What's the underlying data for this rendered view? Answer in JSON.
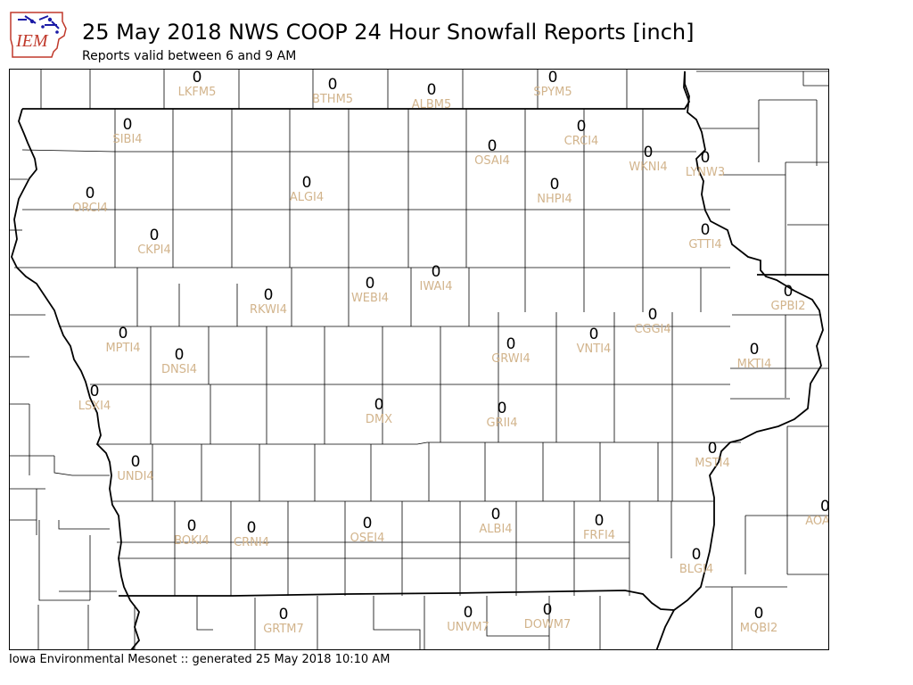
{
  "header": {
    "logo_text": "IEM",
    "title": "25 May 2018 NWS COOP 24 Hour Snowfall Reports [inch]",
    "subtitle": "Reports valid between 6 and 9 AM"
  },
  "footer": {
    "text": "Iowa Environmental Mesonet :: generated 25 May 2018 10:10 AM"
  },
  "colors": {
    "station_id": "#d2b48c",
    "value": "#000000",
    "state_border": "#000000",
    "county_lines": "#000000",
    "logo_blue": "#1a1aa6",
    "logo_red": "#c0392b"
  },
  "stations": [
    {
      "id": "LKFM5",
      "value": "0"
    },
    {
      "id": "BTHM5",
      "value": "0"
    },
    {
      "id": "ALBM5",
      "value": "0"
    },
    {
      "id": "SPYM5",
      "value": "0"
    },
    {
      "id": "SIBI4",
      "value": "0"
    },
    {
      "id": "CRCI4",
      "value": "0"
    },
    {
      "id": "OSAI4",
      "value": "0"
    },
    {
      "id": "WKNI4",
      "value": "0"
    },
    {
      "id": "LYNW3",
      "value": "0"
    },
    {
      "id": "ORCI4",
      "value": "0"
    },
    {
      "id": "ALGI4",
      "value": "0"
    },
    {
      "id": "NHPI4",
      "value": "0"
    },
    {
      "id": "CKPI4",
      "value": "0"
    },
    {
      "id": "GTTI4",
      "value": "0"
    },
    {
      "id": "RKWI4",
      "value": "0"
    },
    {
      "id": "WEBI4",
      "value": "0"
    },
    {
      "id": "IWAI4",
      "value": "0"
    },
    {
      "id": "GPBI2",
      "value": "0"
    },
    {
      "id": "MPTI4",
      "value": "0"
    },
    {
      "id": "CGGI4",
      "value": "0"
    },
    {
      "id": "VNTI4",
      "value": "0"
    },
    {
      "id": "GRWI4",
      "value": "0"
    },
    {
      "id": "DNSI4",
      "value": "0"
    },
    {
      "id": "MKTI4",
      "value": "0"
    },
    {
      "id": "LSXI4",
      "value": "0"
    },
    {
      "id": "DMX",
      "value": "0"
    },
    {
      "id": "GRII4",
      "value": "0"
    },
    {
      "id": "MSTI4",
      "value": "0"
    },
    {
      "id": "UNDI4",
      "value": "0"
    },
    {
      "id": "AOA",
      "value": "0"
    },
    {
      "id": "BOKI4",
      "value": "0"
    },
    {
      "id": "CRNI4",
      "value": "0"
    },
    {
      "id": "OSEI4",
      "value": "0"
    },
    {
      "id": "ALBI4",
      "value": "0"
    },
    {
      "id": "FRFI4",
      "value": "0"
    },
    {
      "id": "BLGI4",
      "value": "0"
    },
    {
      "id": "GRTM7",
      "value": "0"
    },
    {
      "id": "UNVM7",
      "value": "0"
    },
    {
      "id": "DOWM7",
      "value": "0"
    },
    {
      "id": "MQBI2",
      "value": "0"
    }
  ]
}
